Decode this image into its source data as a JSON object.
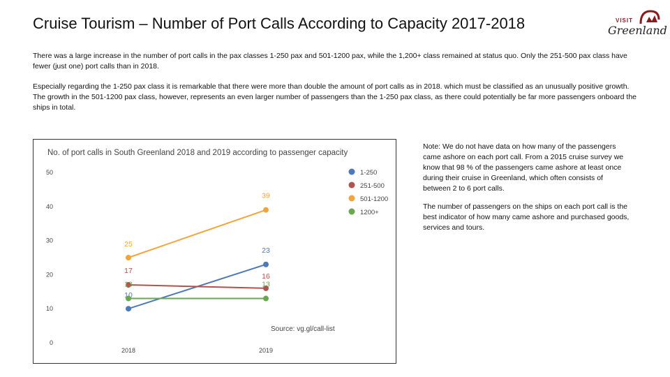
{
  "slide": {
    "title": "Cruise Tourism – Number of Port Calls According to Capacity 2017-2018",
    "logo_visit": "VISIT",
    "logo_name": "Greenland",
    "paragraph1": "There was a large increase in the number of port calls in the pax classes 1-250 pax and 501-1200 pax, while the 1,200+ class remained at status quo. Only the 251-500 pax class have fewer (just one) port calls than in 2018.",
    "paragraph2": "Especially regarding the 1-250 pax class it is remarkable that there were more than double the amount of port calls as in 2018. which must be classified as an unusually positive growth. The growth in the 501-1200 pax class, however, represents an even larger number of passengers than the 1-250 pax class, as there could potentially be far more passengers onboard the ships in total.",
    "note1": "Note: We do not have data on how many of the passengers came ashore on each port call. From a 2015 cruise survey we know that 98 % of the passengers came ashore at least once during their cruise in Greenland, which often consists of between 2 to 6 port calls.",
    "note2": "The number of passengers on the ships on each port call is the best indicator of how many came ashore and purchased goods, services and tours."
  },
  "colors": {
    "logo_red": "#8b1a1a"
  },
  "chart_data": {
    "type": "line",
    "title": "No. of port calls in South Greenland 2018 and 2019 according to passenger capacity",
    "categories": [
      "2018",
      "2019"
    ],
    "ylim": [
      0,
      50
    ],
    "yticks": [
      0,
      10,
      20,
      30,
      40,
      50
    ],
    "grid": false,
    "legend_position": "right",
    "source": "Source: vg.gl/call-list",
    "series": [
      {
        "name": "1-250",
        "values": [
          10,
          23
        ],
        "color": "#4e79b9"
      },
      {
        "name": "251-500",
        "values": [
          17,
          16
        ],
        "color": "#b0524e"
      },
      {
        "name": "501-1200",
        "values": [
          25,
          39
        ],
        "color": "#f2a53a"
      },
      {
        "name": "1200+",
        "values": [
          13,
          13
        ],
        "color": "#6aa84f"
      }
    ]
  }
}
